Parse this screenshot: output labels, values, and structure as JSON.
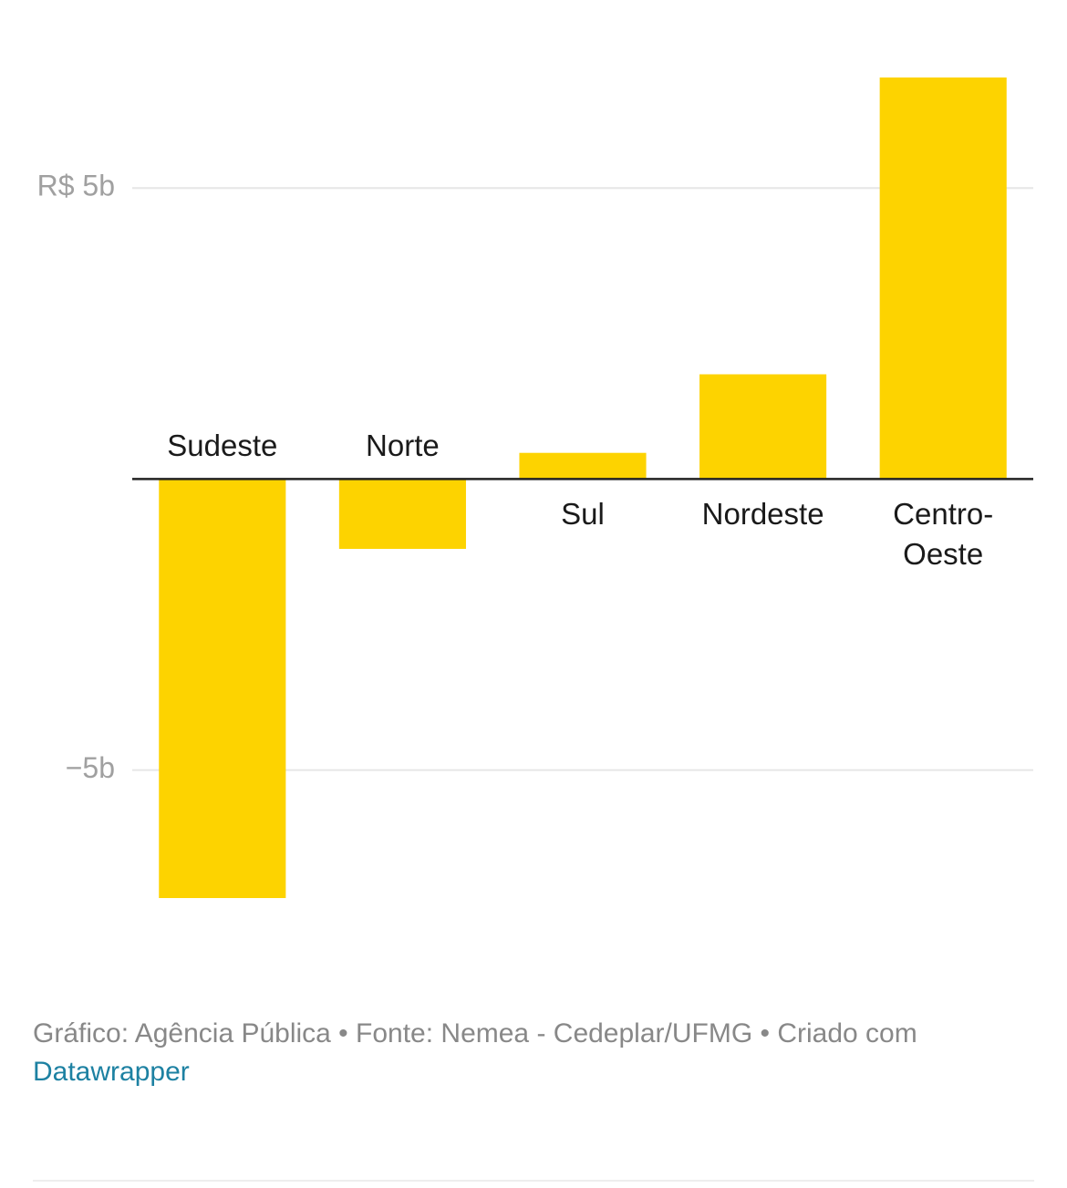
{
  "chart_data": {
    "type": "bar",
    "categories": [
      "Sudeste",
      "Norte",
      "Sul",
      "Nordeste",
      "Centro-Oeste"
    ],
    "values": [
      -7.2,
      -1.2,
      0.45,
      1.8,
      6.9
    ],
    "color": "#fdd300",
    "ylim": [
      -7.2,
      6.9
    ],
    "yticks": [
      {
        "value": -5,
        "label": "−5b"
      },
      {
        "value": 5,
        "label": "R$ 5b"
      }
    ],
    "grid": true,
    "footer": {
      "text": "Gráfico: Agência Pública • Fonte: Nemea - Cedeplar/UFMG • Criado com",
      "link": "Datawrapper"
    }
  }
}
